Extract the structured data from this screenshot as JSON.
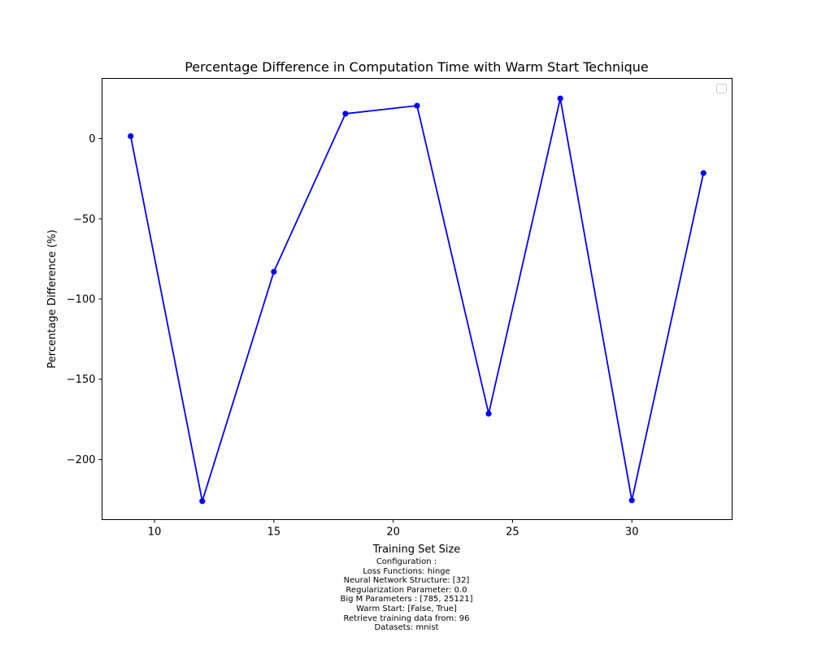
{
  "chart_data": {
    "type": "line",
    "title": "Percentage Difference in Computation Time with Warm Start Technique",
    "xlabel": "Training Set Size",
    "ylabel": "Percentage Difference (%)",
    "xlim": [
      7.8,
      34.2
    ],
    "ylim": [
      -237.5,
      37.5
    ],
    "xticks": [
      10,
      15,
      20,
      25,
      30
    ],
    "xtick_labels": [
      "10",
      "15",
      "20",
      "25",
      "30"
    ],
    "yticks": [
      0,
      -50,
      -100,
      -150,
      -200
    ],
    "ytick_labels": [
      "0",
      "−50",
      "−100",
      "−150",
      "−200"
    ],
    "grid": false,
    "legend": "top-right",
    "series": [
      {
        "color": "#0000ff",
        "marker": "circle",
        "x": [
          9,
          12,
          15,
          18,
          21,
          24,
          27,
          30,
          33
        ],
        "y": [
          1.5,
          -226,
          -83,
          15.5,
          20.5,
          -171.5,
          25,
          -225.5,
          -21.5
        ]
      }
    ]
  },
  "caption": {
    "lines": [
      "Configuration :",
      "Loss Functions: hinge",
      "Neural Network Structure: [32]",
      "Regularization Parameter: 0.0",
      "Big M Parameters : [785, 25121]",
      "Warm Start: [False, True]",
      "Retrieve training data from: 96",
      "Datasets: mnist"
    ]
  }
}
